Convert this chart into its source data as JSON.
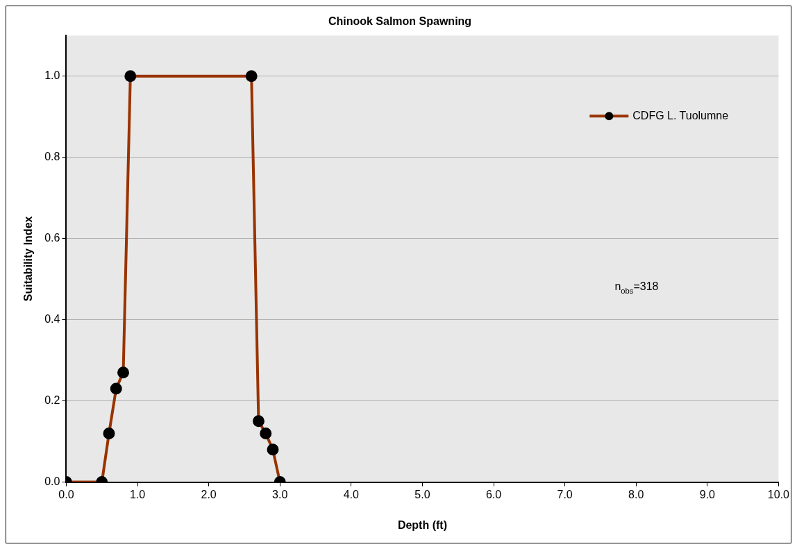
{
  "chart_data": {
    "type": "line",
    "title": "Chinook Salmon Spawning",
    "xlabel": "Depth (ft)",
    "ylabel": "Suitability Index",
    "series": [
      {
        "name": "CDFG L. Tuolumne",
        "color": "#993300",
        "x": [
          0,
          0.5,
          0.6,
          0.7,
          0.8,
          0.9,
          2.6,
          2.7,
          2.8,
          2.9,
          3.0
        ],
        "values": [
          0,
          0,
          0.12,
          0.23,
          0.27,
          1.0,
          1.0,
          0.15,
          0.12,
          0.08,
          0
        ]
      }
    ],
    "xlim": [
      0,
      10
    ],
    "xticks": [
      {
        "value": 0,
        "label": "0.0"
      },
      {
        "value": 1,
        "label": "1.0"
      },
      {
        "value": 2,
        "label": "2.0"
      },
      {
        "value": 3,
        "label": "3.0"
      },
      {
        "value": 4,
        "label": "4.0"
      },
      {
        "value": 5,
        "label": "5.0"
      },
      {
        "value": 6,
        "label": "6.0"
      },
      {
        "value": 7,
        "label": "7.0"
      },
      {
        "value": 8,
        "label": "8.0"
      },
      {
        "value": 9,
        "label": "9.0"
      },
      {
        "value": 10,
        "label": "10.0"
      }
    ],
    "ylim": [
      0,
      1.1
    ],
    "yticks": [
      {
        "value": 0,
        "label": "0.0"
      },
      {
        "value": 0.2,
        "label": "0.2"
      },
      {
        "value": 0.4,
        "label": "0.4"
      },
      {
        "value": 0.6,
        "label": "0.6"
      },
      {
        "value": 0.8,
        "label": "0.8"
      },
      {
        "value": 1,
        "label": "1.0"
      }
    ],
    "grid": "y",
    "legend": "top right",
    "marker": "circle",
    "line_style": "solid",
    "annotations": [
      "n$_{obs}$=318"
    ]
  }
}
